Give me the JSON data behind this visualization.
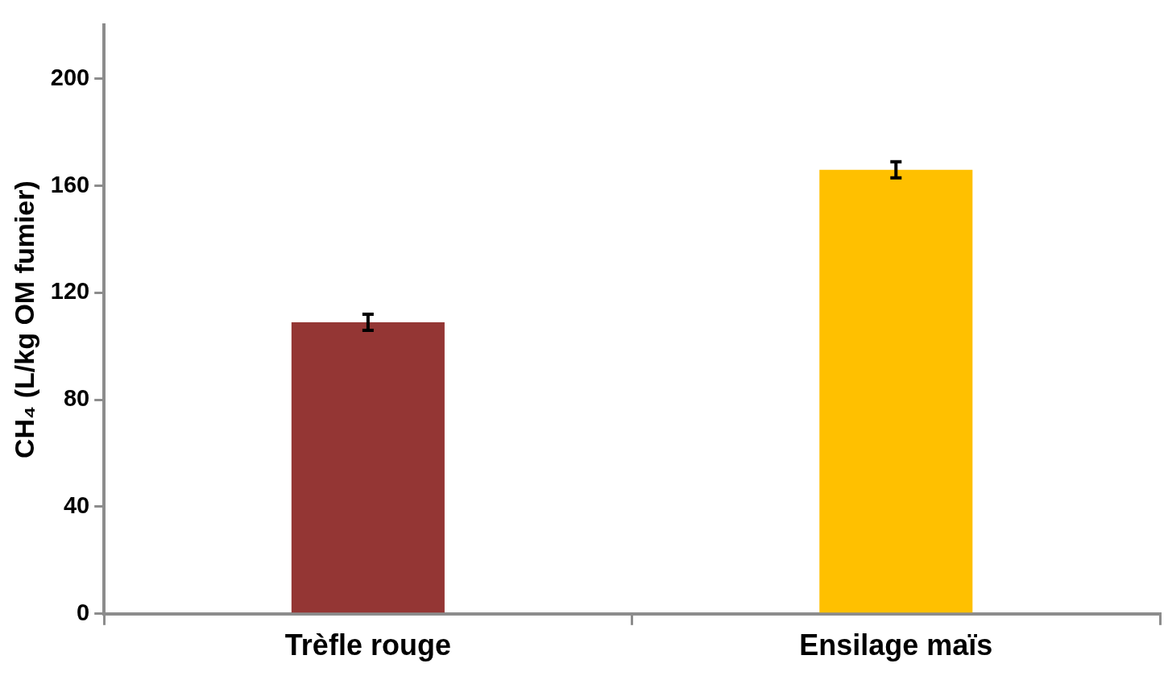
{
  "chart_data": {
    "type": "bar",
    "ylabel": "CH₄ (L/kg OM fumier)",
    "categories": [
      "Trèfle rouge",
      "Ensilage maïs"
    ],
    "values": [
      109,
      166
    ],
    "colors": [
      "#943634",
      "#ffc000"
    ],
    "errors": [
      3,
      3
    ],
    "ylim": [
      0,
      220
    ],
    "yticks": [
      0,
      40,
      80,
      120,
      160,
      200
    ],
    "grid": false,
    "legend": false
  }
}
